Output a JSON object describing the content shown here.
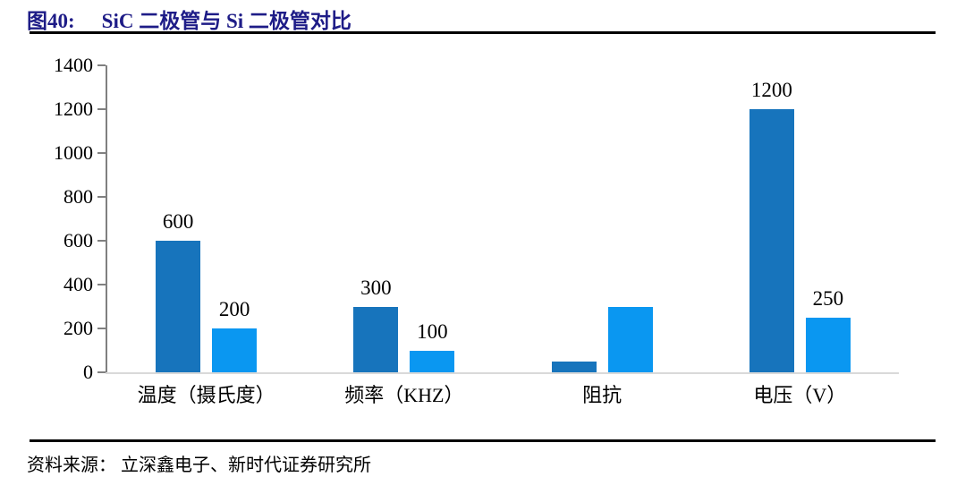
{
  "header": {
    "figure_label": "图40:",
    "title": "SiC 二极管与 Si 二极管对比"
  },
  "footer": {
    "source_text": "资料来源： 立深鑫电子、新时代证券研究所"
  },
  "chart_data": {
    "type": "bar",
    "title": "SiC 二极管与 Si 二极管对比",
    "categories": [
      "温度（摄氏度）",
      "频率（KHZ）",
      "阻抗",
      "电压（V）"
    ],
    "series": [
      {
        "name": "SiC 二极管",
        "color": "#1774BC",
        "values": [
          600,
          300,
          50,
          1200
        ],
        "data_labels": [
          "600",
          "300",
          null,
          "1200"
        ]
      },
      {
        "name": "Si 二极管",
        "color": "#0A97F1",
        "values": [
          200,
          100,
          300,
          250
        ],
        "data_labels": [
          "200",
          "100",
          null,
          "250"
        ]
      }
    ],
    "ylim": [
      0,
      1400
    ],
    "yticks": [
      0,
      200,
      400,
      600,
      800,
      1000,
      1200,
      1400
    ],
    "xlabel": "",
    "ylabel": "",
    "grid": false,
    "legend_position": "none",
    "axis_color": "#808080",
    "baseline_color": "#D9D9D9",
    "label_color": "#000000"
  }
}
